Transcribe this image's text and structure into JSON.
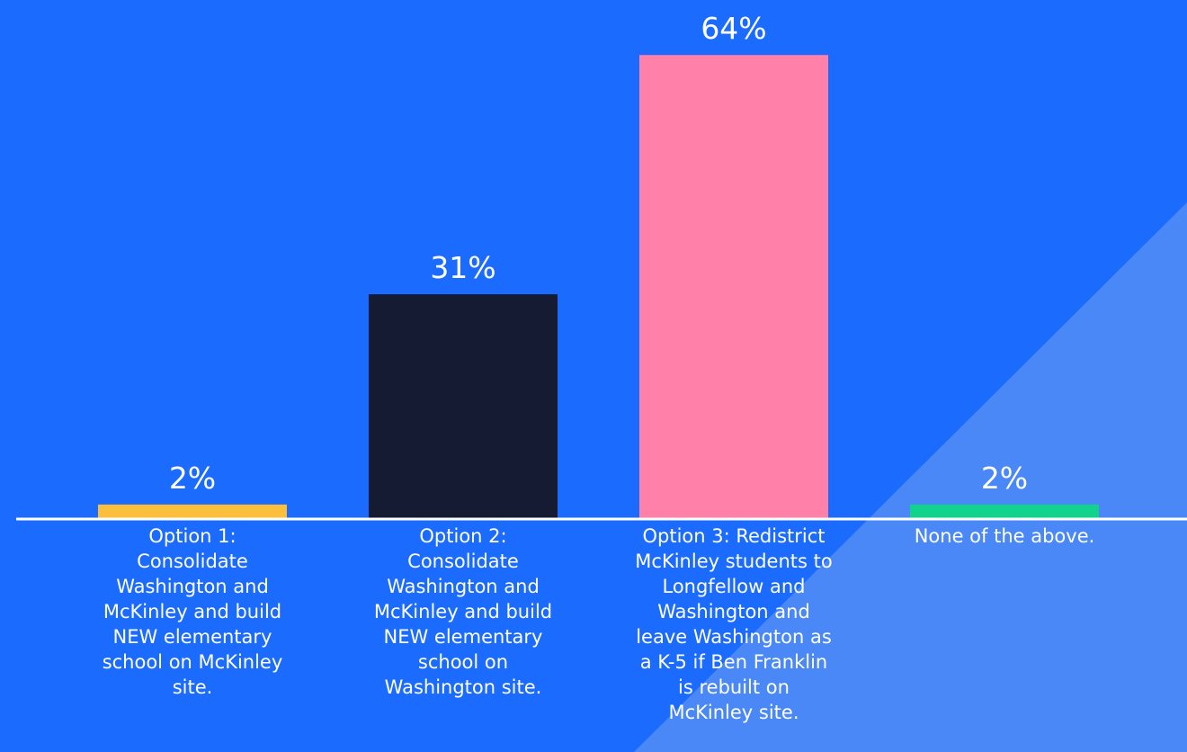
{
  "chart_data": {
    "type": "bar",
    "categories": [
      "Option 1: Consolidate Washington and McKinley and build NEW elementary school on McKinley site.",
      "Option 2: Consolidate Washington and McKinley and build NEW elementary school on Washington site.",
      "Option 3: Redistrict McKinley students to Longfellow and Washington and leave Washington as a K-5 if Ben Franklin is rebuilt on McKinley site.",
      "None of the above."
    ],
    "values": [
      2,
      31,
      64,
      2
    ],
    "value_labels": [
      "2%",
      "31%",
      "64%",
      "2%"
    ],
    "colors": [
      "#fbbf3c",
      "#141b33",
      "#ff80a8",
      "#12d38c"
    ]
  }
}
